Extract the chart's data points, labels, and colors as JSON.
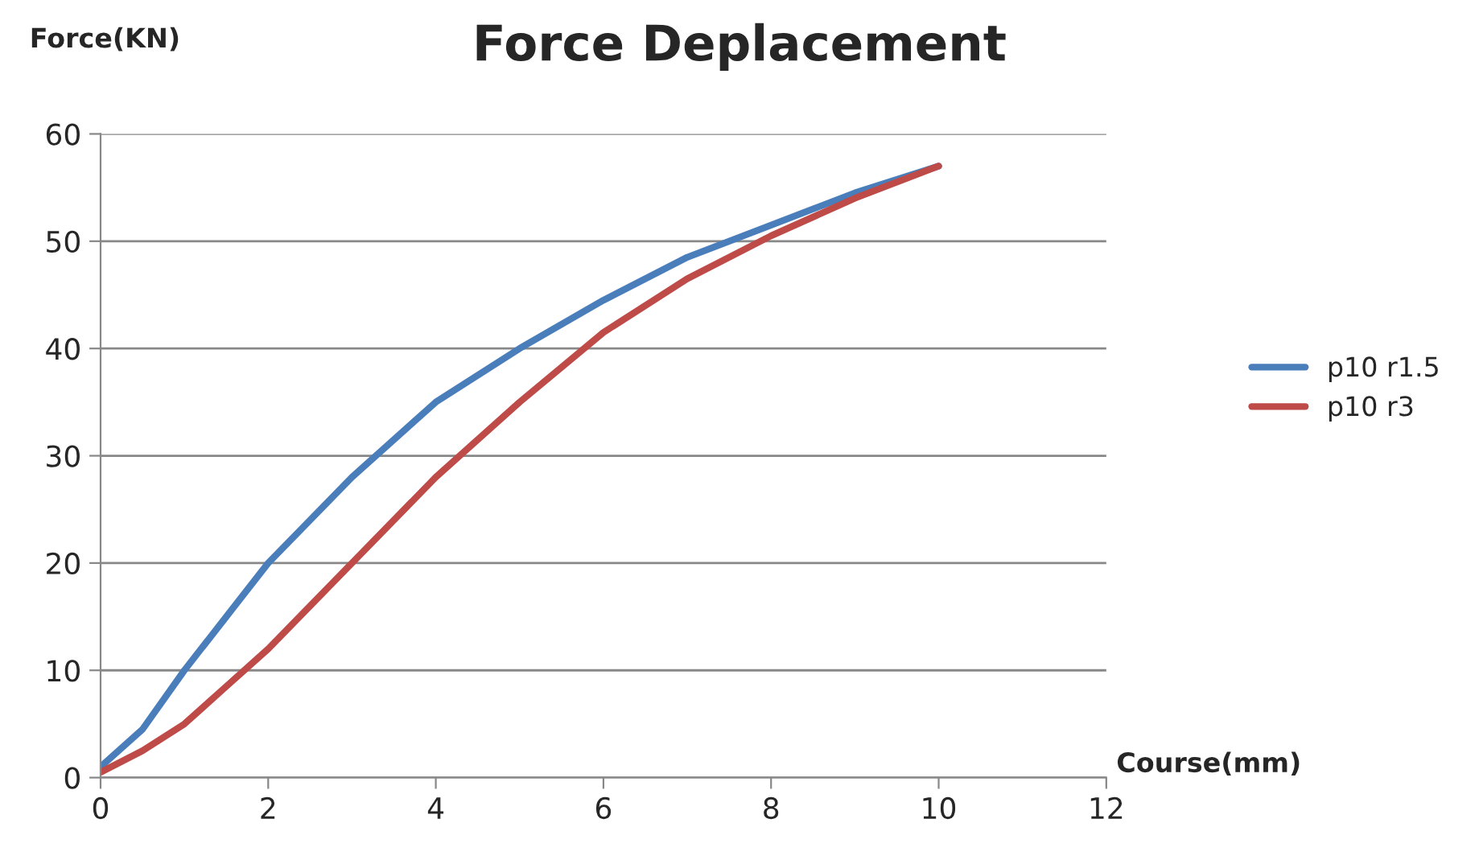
{
  "chart_data": {
    "type": "line",
    "title": "Force Deplacement",
    "xlabel": "Course(mm)",
    "ylabel": "Force(KN)",
    "xlim": [
      0,
      12
    ],
    "xticks": [
      0,
      2,
      4,
      6,
      8,
      10,
      12
    ],
    "ylim": [
      0,
      60
    ],
    "yticks": [
      0,
      10,
      20,
      30,
      40,
      50,
      60
    ],
    "grid": "y",
    "legend": "right",
    "marker": "none",
    "line_style": "solid",
    "series": [
      {
        "name": "p10 r1.5",
        "color": "#4a7ebb",
        "x": [
          0,
          0.5,
          1,
          1.5,
          2,
          3,
          4,
          5,
          6,
          7,
          8,
          9,
          10
        ],
        "values": [
          1,
          4.5,
          10,
          15,
          20,
          28,
          35,
          40,
          44.5,
          48.5,
          51.5,
          54.5,
          57
        ]
      },
      {
        "name": "p10 r3",
        "color": "#be4b48",
        "x": [
          0,
          0.5,
          1,
          1.5,
          2,
          3,
          4,
          5,
          6,
          7,
          8,
          9,
          10
        ],
        "values": [
          0.5,
          2.5,
          5,
          8.5,
          12,
          20,
          28,
          35,
          41.5,
          46.5,
          50.5,
          54,
          57
        ]
      }
    ]
  }
}
